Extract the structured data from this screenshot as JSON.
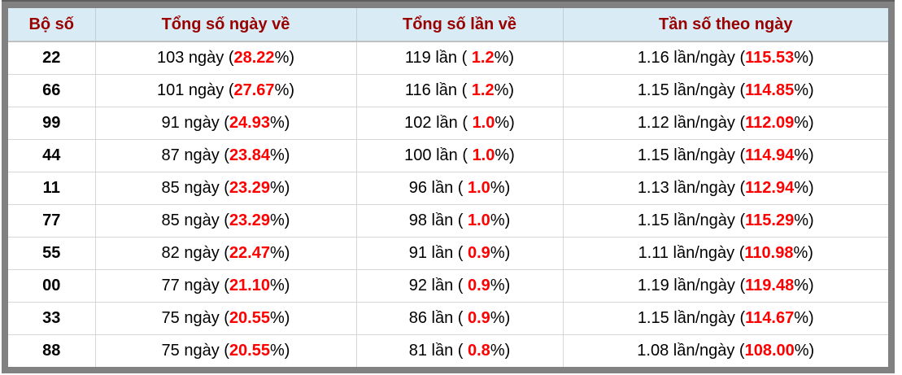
{
  "colors": {
    "header_background": "#d9ecf5",
    "header_text": "#990000",
    "highlight_percent": "#ff0000",
    "frame_border": "#818181",
    "row_divider": "#d6d6d6"
  },
  "table": {
    "headers": [
      {
        "label": "Bộ số"
      },
      {
        "label": "Tổng số ngày về"
      },
      {
        "label": "Tổng số lần về"
      },
      {
        "label": "Tần số theo ngày"
      }
    ],
    "percent_suffix": "%)",
    "rows": [
      {
        "pair": "22",
        "days": {
          "pre": "103 ngày (",
          "value": "28.22",
          "post": "%)"
        },
        "times": {
          "pre": "119 lần ( ",
          "value": "1.2",
          "post": "%)"
        },
        "freq": {
          "pre": "1.16 lần/ngày (",
          "value": "115.53",
          "post": "%)"
        }
      },
      {
        "pair": "66",
        "days": {
          "pre": "101 ngày (",
          "value": "27.67",
          "post": "%)"
        },
        "times": {
          "pre": "116 lần ( ",
          "value": "1.2",
          "post": "%)"
        },
        "freq": {
          "pre": "1.15 lần/ngày (",
          "value": "114.85",
          "post": "%)"
        }
      },
      {
        "pair": "99",
        "days": {
          "pre": "91 ngày (",
          "value": "24.93",
          "post": "%)"
        },
        "times": {
          "pre": "102 lần ( ",
          "value": "1.0",
          "post": "%)"
        },
        "freq": {
          "pre": "1.12 lần/ngày (",
          "value": "112.09",
          "post": "%)"
        }
      },
      {
        "pair": "44",
        "days": {
          "pre": "87 ngày (",
          "value": "23.84",
          "post": "%)"
        },
        "times": {
          "pre": "100 lần ( ",
          "value": "1.0",
          "post": "%)"
        },
        "freq": {
          "pre": "1.15 lần/ngày (",
          "value": "114.94",
          "post": "%)"
        }
      },
      {
        "pair": "11",
        "days": {
          "pre": "85 ngày (",
          "value": "23.29",
          "post": "%)"
        },
        "times": {
          "pre": "96 lần ( ",
          "value": "1.0",
          "post": "%)"
        },
        "freq": {
          "pre": "1.13 lần/ngày (",
          "value": "112.94",
          "post": "%)"
        }
      },
      {
        "pair": "77",
        "days": {
          "pre": "85 ngày (",
          "value": "23.29",
          "post": "%)"
        },
        "times": {
          "pre": "98 lần ( ",
          "value": "1.0",
          "post": "%)"
        },
        "freq": {
          "pre": "1.15 lần/ngày (",
          "value": "115.29",
          "post": "%)"
        }
      },
      {
        "pair": "55",
        "days": {
          "pre": "82 ngày (",
          "value": "22.47",
          "post": "%)"
        },
        "times": {
          "pre": "91 lần ( ",
          "value": "0.9",
          "post": "%)"
        },
        "freq": {
          "pre": "1.11 lần/ngày (",
          "value": "110.98",
          "post": "%)"
        }
      },
      {
        "pair": "00",
        "days": {
          "pre": "77 ngày (",
          "value": "21.10",
          "post": "%)"
        },
        "times": {
          "pre": "92 lần ( ",
          "value": "0.9",
          "post": "%)"
        },
        "freq": {
          "pre": "1.19 lần/ngày (",
          "value": "119.48",
          "post": "%)"
        }
      },
      {
        "pair": "33",
        "days": {
          "pre": "75 ngày (",
          "value": "20.55",
          "post": "%)"
        },
        "times": {
          "pre": "86 lần ( ",
          "value": "0.9",
          "post": "%)"
        },
        "freq": {
          "pre": "1.15 lần/ngày (",
          "value": "114.67",
          "post": "%)"
        }
      },
      {
        "pair": "88",
        "days": {
          "pre": "75 ngày (",
          "value": "20.55",
          "post": "%)"
        },
        "times": {
          "pre": "81 lần ( ",
          "value": "0.8",
          "post": "%)"
        },
        "freq": {
          "pre": "1.08 lần/ngày (",
          "value": "108.00",
          "post": "%)"
        }
      }
    ]
  }
}
